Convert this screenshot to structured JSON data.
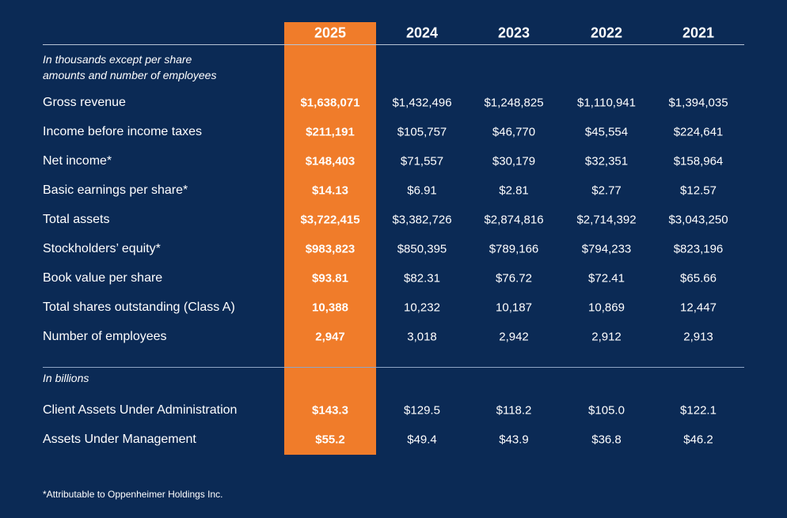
{
  "table": {
    "columns": [
      "2025",
      "2024",
      "2023",
      "2022",
      "2021"
    ],
    "sections": [
      {
        "note": [
          "In thousands except per share",
          "amounts and number of employees"
        ],
        "rows": [
          {
            "label": "Gross revenue",
            "values": [
              "$1,638,071",
              "$1,432,496",
              "$1,248,825",
              "$1,110,941",
              "$1,394,035"
            ]
          },
          {
            "label": "Income before income taxes",
            "values": [
              "$211,191",
              "$105,757",
              "$46,770",
              "$45,554",
              "$224,641"
            ]
          },
          {
            "label": "Net income*",
            "values": [
              "$148,403",
              "$71,557",
              "$30,179",
              "$32,351",
              "$158,964"
            ]
          },
          {
            "label": "Basic earnings per share*",
            "values": [
              "$14.13",
              "$6.91",
              "$2.81",
              "$2.77",
              "$12.57"
            ]
          },
          {
            "label": "Total assets",
            "values": [
              "$3,722,415",
              "$3,382,726",
              "$2,874,816",
              "$2,714,392",
              "$3,043,250"
            ]
          },
          {
            "label": "Stockholders’ equity*",
            "values": [
              "$983,823",
              "$850,395",
              "$789,166",
              "$794,233",
              "$823,196"
            ]
          },
          {
            "label": "Book value per share",
            "values": [
              "$93.81",
              "$82.31",
              "$76.72",
              "$72.41",
              "$65.66"
            ]
          },
          {
            "label": "Total shares outstanding (Class A)",
            "values": [
              "10,388",
              "10,232",
              "10,187",
              "10,869",
              "12,447"
            ]
          },
          {
            "label": "Number of employees",
            "values": [
              "2,947",
              "3,018",
              "2,942",
              "2,912",
              "2,913"
            ]
          }
        ]
      },
      {
        "note": [
          "In billions"
        ],
        "rows": [
          {
            "label": "Client Assets Under Administration",
            "values": [
              "$143.3",
              "$129.5",
              "$118.2",
              "$105.0",
              "$122.1"
            ]
          },
          {
            "label": "Assets Under Management",
            "values": [
              "$55.2",
              "$49.4",
              "$43.9",
              "$36.8",
              "$46.2"
            ]
          }
        ]
      }
    ],
    "footnote": "*Attributable to Oppenheimer Holdings Inc."
  }
}
